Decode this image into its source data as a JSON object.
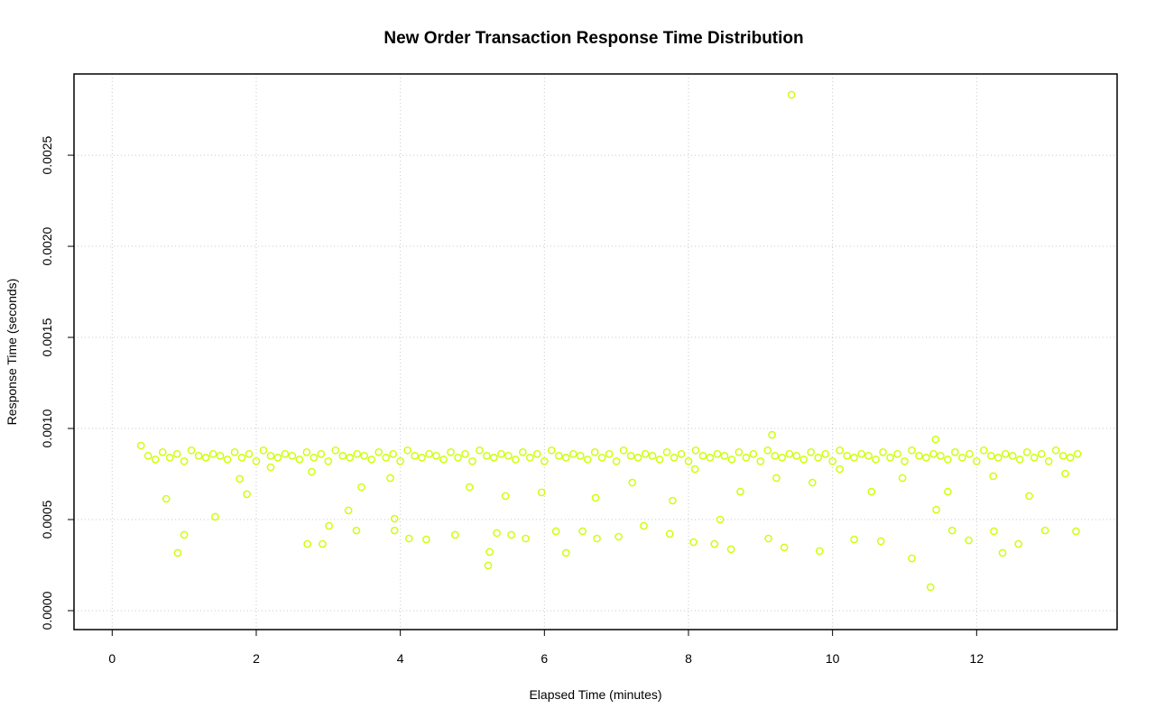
{
  "chart_data": {
    "type": "scatter",
    "title": "New Order Transaction Response Time Distribution",
    "x_label": "Elapsed Time (minutes)",
    "y_label": "Response Time (seconds)",
    "color": "#ccff00",
    "grid": true,
    "xlim": [
      -0.53,
      13.95
    ],
    "ylim": [
      -0.000104,
      0.002946
    ],
    "xticks": [
      0,
      2,
      4,
      6,
      8,
      10,
      12
    ],
    "yticks": [
      {
        "value": 0,
        "label": "0.0000"
      },
      {
        "value": 0.0005,
        "label": "0.0005"
      },
      {
        "value": 0.001,
        "label": "0.0010"
      },
      {
        "value": 0.0015,
        "label": "0.0015"
      },
      {
        "value": 0.002,
        "label": "0.0020"
      },
      {
        "value": 0.0025,
        "label": "0.0025"
      }
    ],
    "x": [
      0.5,
      0.6,
      0.7,
      0.8,
      0.9,
      1.0,
      1.1,
      1.2,
      1.3,
      1.4,
      1.5,
      1.6,
      1.7,
      1.8,
      1.9,
      2.0,
      2.1,
      2.2,
      2.3,
      2.4,
      2.5,
      2.6,
      2.7,
      2.8,
      2.9,
      3.0,
      3.1,
      3.2,
      3.3,
      3.4,
      3.5,
      3.6,
      3.7,
      3.8,
      3.9,
      4.0,
      4.1,
      4.2,
      4.3,
      4.4,
      4.5,
      4.6,
      4.7,
      4.8,
      4.9,
      5.0,
      5.1,
      5.2,
      5.3,
      5.4,
      5.5,
      5.6,
      5.7,
      5.8,
      5.9,
      6.0,
      6.1,
      6.2,
      6.3,
      6.4,
      6.5,
      6.6,
      6.7,
      6.8,
      6.9,
      7.0,
      7.1,
      7.2,
      7.3,
      7.4,
      7.5,
      7.6,
      7.7,
      7.8,
      7.9,
      8.0,
      8.1,
      8.2,
      8.3,
      8.4,
      8.5,
      8.6,
      8.7,
      8.8,
      8.9,
      9.0,
      9.1,
      9.2,
      9.3,
      9.4,
      9.5,
      9.6,
      9.7,
      9.8,
      9.9,
      10.0,
      10.1,
      10.2,
      10.3,
      10.4,
      10.5,
      10.6,
      10.7,
      10.8,
      10.9,
      11.0,
      11.1,
      11.2,
      11.3,
      11.4,
      11.5,
      11.6,
      11.7,
      11.8,
      11.9,
      12.0,
      12.1,
      12.2,
      12.3,
      12.4,
      12.5,
      12.6,
      12.7,
      12.8,
      12.9,
      13.0,
      13.1,
      13.2,
      13.3,
      13.4,
      0.4,
      0.91,
      1.0,
      0.75,
      1.43,
      1.77,
      1.87,
      2.71,
      2.92,
      3.01,
      3.28,
      3.39,
      3.92,
      3.92,
      4.12,
      4.36,
      4.76,
      5.22,
      5.24,
      5.34,
      5.54,
      5.74,
      6.16,
      6.3,
      6.53,
      6.73,
      7.03,
      7.38,
      7.74,
      8.07,
      8.36,
      8.59,
      8.44,
      9.11,
      9.33,
      9.43,
      9.16,
      9.82,
      10.3,
      10.67,
      11.1,
      11.36,
      11.44,
      11.66,
      11.89,
      12.24,
      12.36,
      12.58,
      12.95,
      13.38,
      11.43,
      2.2,
      2.77,
      3.46,
      3.86,
      4.96,
      5.46,
      5.96,
      6.71,
      7.22,
      7.78,
      8.09,
      8.72,
      9.22,
      9.72,
      10.1,
      10.54,
      10.97,
      11.6,
      12.23,
      12.73,
      13.23
    ],
    "values": [
      0.00085,
      0.00083,
      0.00087,
      0.00084,
      0.00086,
      0.00082,
      0.00088,
      0.00085,
      0.00084,
      0.00086,
      0.00085,
      0.00083,
      0.00087,
      0.00084,
      0.00086,
      0.00082,
      0.00088,
      0.00085,
      0.00084,
      0.00086,
      0.00085,
      0.00083,
      0.00087,
      0.00084,
      0.00086,
      0.00082,
      0.00088,
      0.00085,
      0.00084,
      0.00086,
      0.00085,
      0.00083,
      0.00087,
      0.00084,
      0.00086,
      0.00082,
      0.00088,
      0.00085,
      0.00084,
      0.00086,
      0.00085,
      0.00083,
      0.00087,
      0.00084,
      0.00086,
      0.00082,
      0.00088,
      0.00085,
      0.00084,
      0.00086,
      0.00085,
      0.00083,
      0.00087,
      0.00084,
      0.00086,
      0.00082,
      0.00088,
      0.00085,
      0.00084,
      0.00086,
      0.00085,
      0.00083,
      0.00087,
      0.00084,
      0.00086,
      0.00082,
      0.00088,
      0.00085,
      0.00084,
      0.00086,
      0.00085,
      0.00083,
      0.00087,
      0.00084,
      0.00086,
      0.00082,
      0.00088,
      0.00085,
      0.00084,
      0.00086,
      0.00085,
      0.00083,
      0.00087,
      0.00084,
      0.00086,
      0.00082,
      0.00088,
      0.00085,
      0.00084,
      0.00086,
      0.00085,
      0.00083,
      0.00087,
      0.00084,
      0.00086,
      0.00082,
      0.00088,
      0.00085,
      0.00084,
      0.00086,
      0.00085,
      0.00083,
      0.00087,
      0.00084,
      0.00086,
      0.00082,
      0.00088,
      0.00085,
      0.00084,
      0.00086,
      0.00085,
      0.00083,
      0.00087,
      0.00084,
      0.00086,
      0.00082,
      0.00088,
      0.00085,
      0.00084,
      0.00086,
      0.00085,
      0.00083,
      0.00087,
      0.00084,
      0.00086,
      0.00082,
      0.00088,
      0.00085,
      0.00084,
      0.00086,
      0.000906,
      0.000317,
      0.000416,
      0.000614,
      0.000515,
      0.000723,
      0.000639,
      0.000366,
      0.000366,
      0.000465,
      0.00055,
      0.00044,
      0.00044,
      0.000505,
      0.000396,
      0.000391,
      0.000416,
      0.000248,
      0.000322,
      0.000426,
      0.000416,
      0.000396,
      0.000436,
      0.000317,
      0.000436,
      0.000396,
      0.000406,
      0.000465,
      0.000421,
      0.000376,
      0.000366,
      0.000337,
      0.0005,
      0.000396,
      0.000347,
      0.002832,
      0.000965,
      0.000327,
      0.000391,
      0.000381,
      0.000287,
      0.000129,
      0.000554,
      0.00044,
      0.000386,
      0.000436,
      0.000317,
      0.000366,
      0.00044,
      0.000436,
      0.00094,
      0.000787,
      0.000762,
      0.000678,
      0.000728,
      0.000678,
      0.000629,
      0.000649,
      0.000619,
      0.000703,
      0.000604,
      0.000777,
      0.000653,
      0.000728,
      0.000703,
      0.000777,
      0.000653,
      0.000728,
      0.000653,
      0.000738,
      0.000629,
      0.000752
    ]
  }
}
